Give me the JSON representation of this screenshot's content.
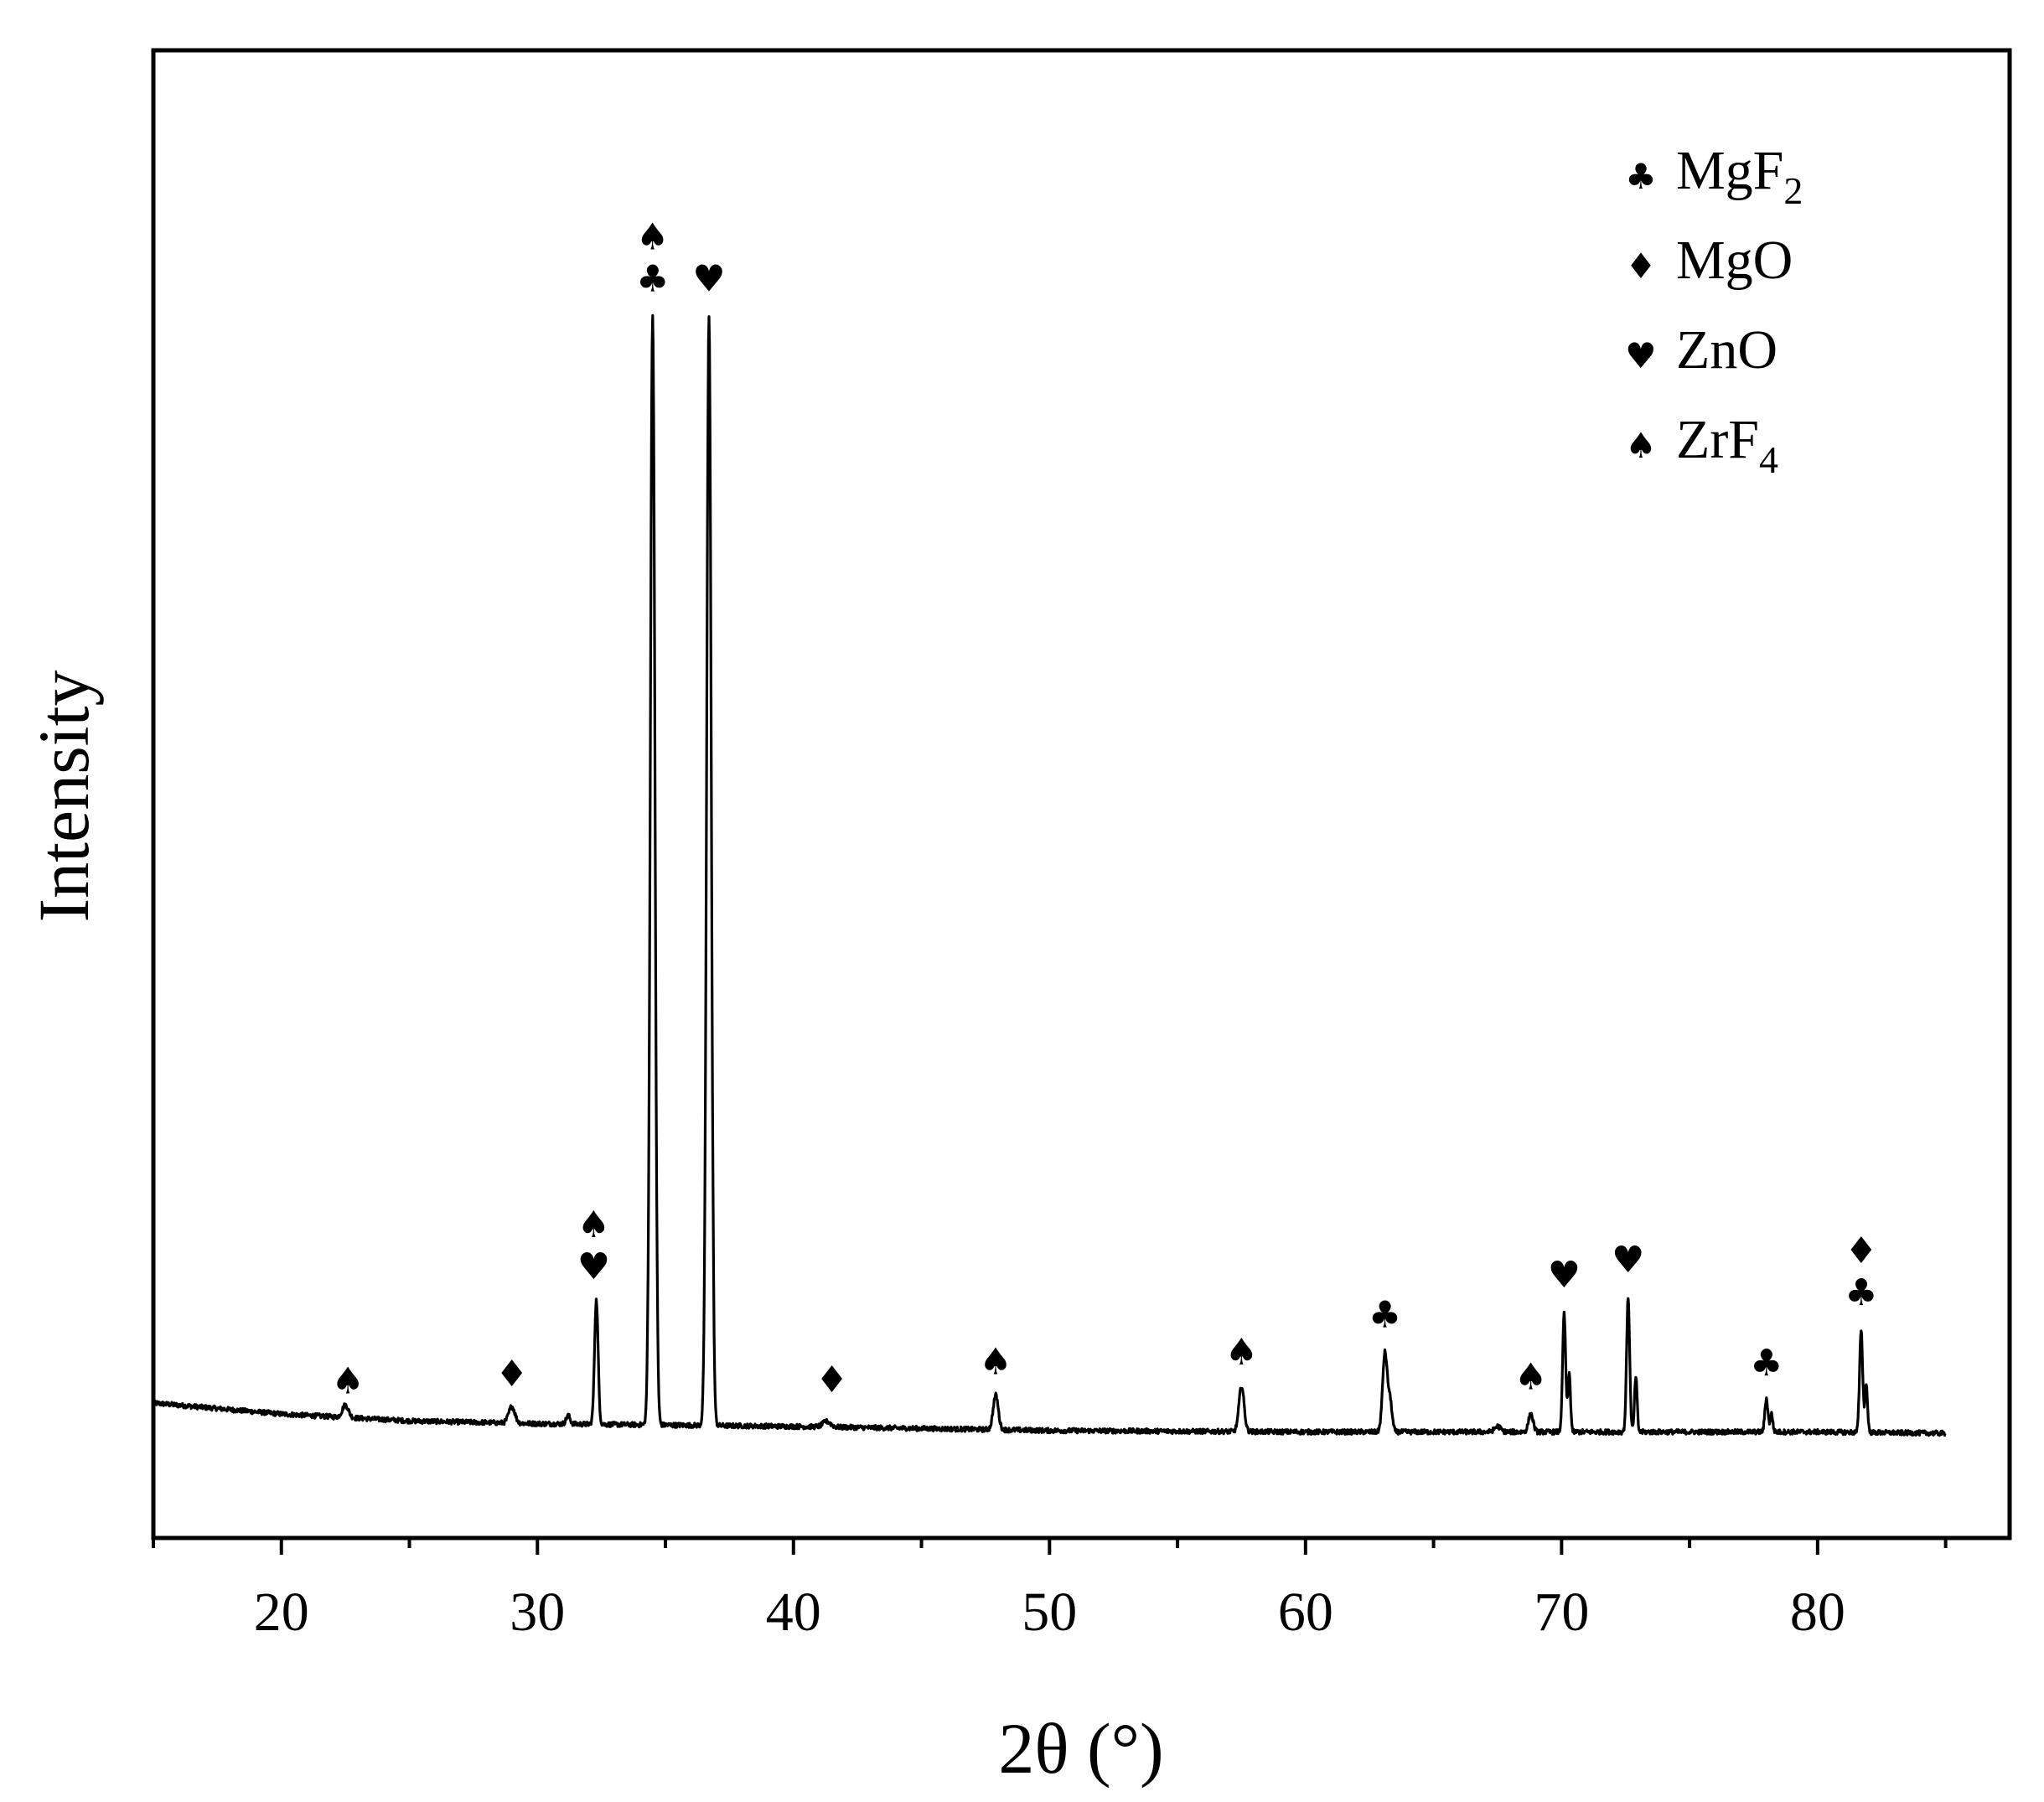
{
  "chart_data": {
    "type": "line",
    "title": "",
    "xlabel": "2θ (°)",
    "ylabel": "Intensity",
    "xlim": [
      15,
      87.5
    ],
    "ylim": [
      -8,
      100
    ],
    "xticks": [
      20,
      30,
      40,
      50,
      60,
      70,
      80
    ],
    "xtick_labels": [
      "20",
      "30",
      "40",
      "50",
      "60",
      "70",
      "80"
    ],
    "y_tick_labels_shown": false,
    "grid": false,
    "legend_position": "top-right",
    "legend": [
      {
        "symbol": "♣",
        "name": "MgF",
        "subscript": "2"
      },
      {
        "symbol": "♦",
        "name": "MgO",
        "subscript": ""
      },
      {
        "symbol": "♥",
        "name": "ZnO",
        "subscript": ""
      },
      {
        "symbol": "♠",
        "name": "ZrF",
        "subscript": "4"
      }
    ],
    "series": [
      {
        "name": "",
        "baseline": [
          [
            15,
            1.8
          ],
          [
            20,
            1.0
          ],
          [
            25,
            0.5
          ],
          [
            30,
            0.3
          ],
          [
            35,
            0.2
          ],
          [
            40,
            0.1
          ],
          [
            50,
            -0.2
          ],
          [
            60,
            -0.3
          ],
          [
            70,
            -0.3
          ],
          [
            80,
            -0.3
          ],
          [
            85,
            -0.4
          ]
        ],
        "peaks": [
          {
            "x": 22.5,
            "height": 0.9,
            "width": 0.12
          },
          {
            "x": 29.0,
            "height": 1.2,
            "width": 0.12
          },
          {
            "x": 31.2,
            "height": 0.6,
            "width": 0.08
          },
          {
            "x": 32.3,
            "height": 9.0,
            "width": 0.07
          },
          {
            "x": 34.5,
            "height": 80.5,
            "width": 0.09
          },
          {
            "x": 36.7,
            "height": 80.5,
            "width": 0.09
          },
          {
            "x": 41.3,
            "height": 0.4,
            "width": 0.15
          },
          {
            "x": 47.9,
            "height": 2.5,
            "width": 0.1
          },
          {
            "x": 57.5,
            "height": 3.3,
            "width": 0.1
          },
          {
            "x": 63.1,
            "height": 5.7,
            "width": 0.09
          },
          {
            "x": 63.3,
            "height": 2.2,
            "width": 0.08
          },
          {
            "x": 67.5,
            "height": 0.4,
            "width": 0.12
          },
          {
            "x": 68.8,
            "height": 1.3,
            "width": 0.09
          },
          {
            "x": 70.1,
            "height": 8.6,
            "width": 0.06
          },
          {
            "x": 70.3,
            "height": 4.2,
            "width": 0.05
          },
          {
            "x": 72.6,
            "height": 9.8,
            "width": 0.06
          },
          {
            "x": 72.9,
            "height": 4.0,
            "width": 0.05
          },
          {
            "x": 78.0,
            "height": 2.4,
            "width": 0.06
          },
          {
            "x": 78.2,
            "height": 1.3,
            "width": 0.05
          },
          {
            "x": 81.7,
            "height": 7.5,
            "width": 0.06
          },
          {
            "x": 81.9,
            "height": 3.5,
            "width": 0.05
          }
        ]
      }
    ],
    "annotations": [
      {
        "x": 22.6,
        "y": 2.5,
        "symbols": [
          "♠"
        ]
      },
      {
        "x": 29.0,
        "y": 3.0,
        "symbols": [
          "♦"
        ]
      },
      {
        "x": 32.2,
        "y": 10.8,
        "symbols": [
          "♥",
          "♠"
        ]
      },
      {
        "x": 34.5,
        "y": 82.5,
        "symbols": [
          "♣",
          "♠"
        ]
      },
      {
        "x": 36.7,
        "y": 82.5,
        "symbols": [
          "♥"
        ]
      },
      {
        "x": 41.5,
        "y": 2.6,
        "symbols": [
          "♦"
        ]
      },
      {
        "x": 47.9,
        "y": 3.9,
        "symbols": [
          "♠"
        ]
      },
      {
        "x": 57.5,
        "y": 4.6,
        "symbols": [
          "♠"
        ]
      },
      {
        "x": 63.1,
        "y": 7.3,
        "symbols": [
          "♣"
        ]
      },
      {
        "x": 68.8,
        "y": 2.8,
        "symbols": [
          "♠"
        ]
      },
      {
        "x": 70.1,
        "y": 10.2,
        "symbols": [
          "♥"
        ]
      },
      {
        "x": 72.6,
        "y": 11.3,
        "symbols": [
          "♥"
        ]
      },
      {
        "x": 78.0,
        "y": 3.8,
        "symbols": [
          "♣"
        ]
      },
      {
        "x": 81.7,
        "y": 8.9,
        "symbols": [
          "♣",
          "♦"
        ]
      }
    ]
  }
}
